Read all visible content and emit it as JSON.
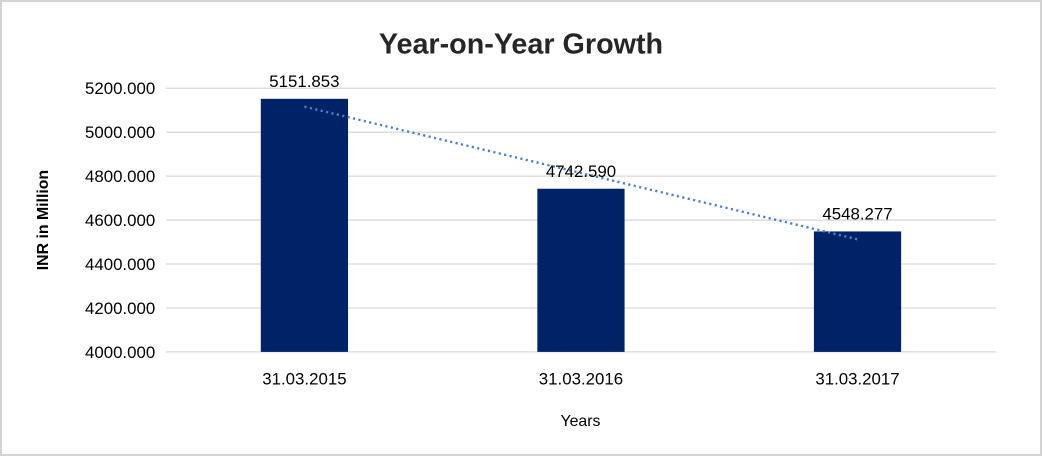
{
  "chart_data": {
    "type": "bar",
    "title": "Year-on-Year Growth",
    "xlabel": "Years",
    "ylabel": "INR in Million",
    "categories": [
      "31.03.2015",
      "31.03.2016",
      "31.03.2017"
    ],
    "values": [
      5151.853,
      4742.59,
      4548.277
    ],
    "data_labels": [
      "5151.853",
      "4742.590",
      "4548.277"
    ],
    "ylim": [
      4000,
      5200
    ],
    "ytick_step": 200,
    "ytick_labels": [
      "4000.000",
      "4200.000",
      "4400.000",
      "4600.000",
      "4800.000",
      "5000.000",
      "5200.000"
    ],
    "grid": true,
    "legend": "none",
    "trendline": {
      "style": "dotted",
      "fit": "linear"
    },
    "colors": {
      "bar": "#002266",
      "trendline": "#4a82c4",
      "gridline": "#d9d9d9",
      "title_text": "#262626",
      "tick_text": "#000000",
      "border": "#d3d3d3",
      "background": "#ffffff"
    }
  }
}
